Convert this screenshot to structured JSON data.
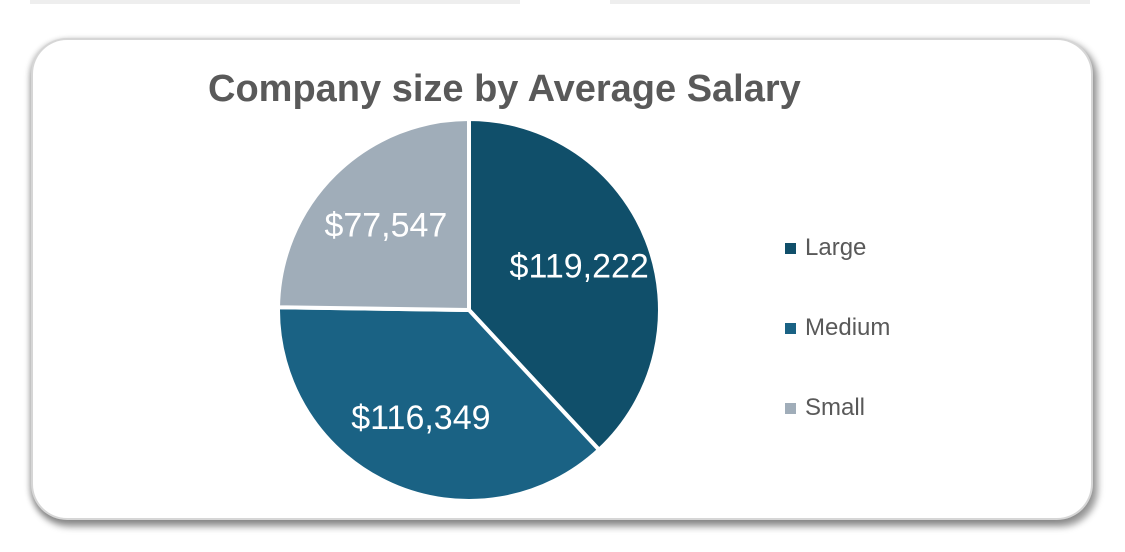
{
  "chart_data": {
    "type": "pie",
    "title": "Company size by Average Salary",
    "categories": [
      "Large",
      "Medium",
      "Small"
    ],
    "values": [
      119222,
      116349,
      77547
    ],
    "data_labels": [
      "$119,222",
      "$116,349",
      "$77,547"
    ],
    "colors": [
      "#104f6a",
      "#1a6284",
      "#a0adb9"
    ],
    "legend": "right"
  }
}
